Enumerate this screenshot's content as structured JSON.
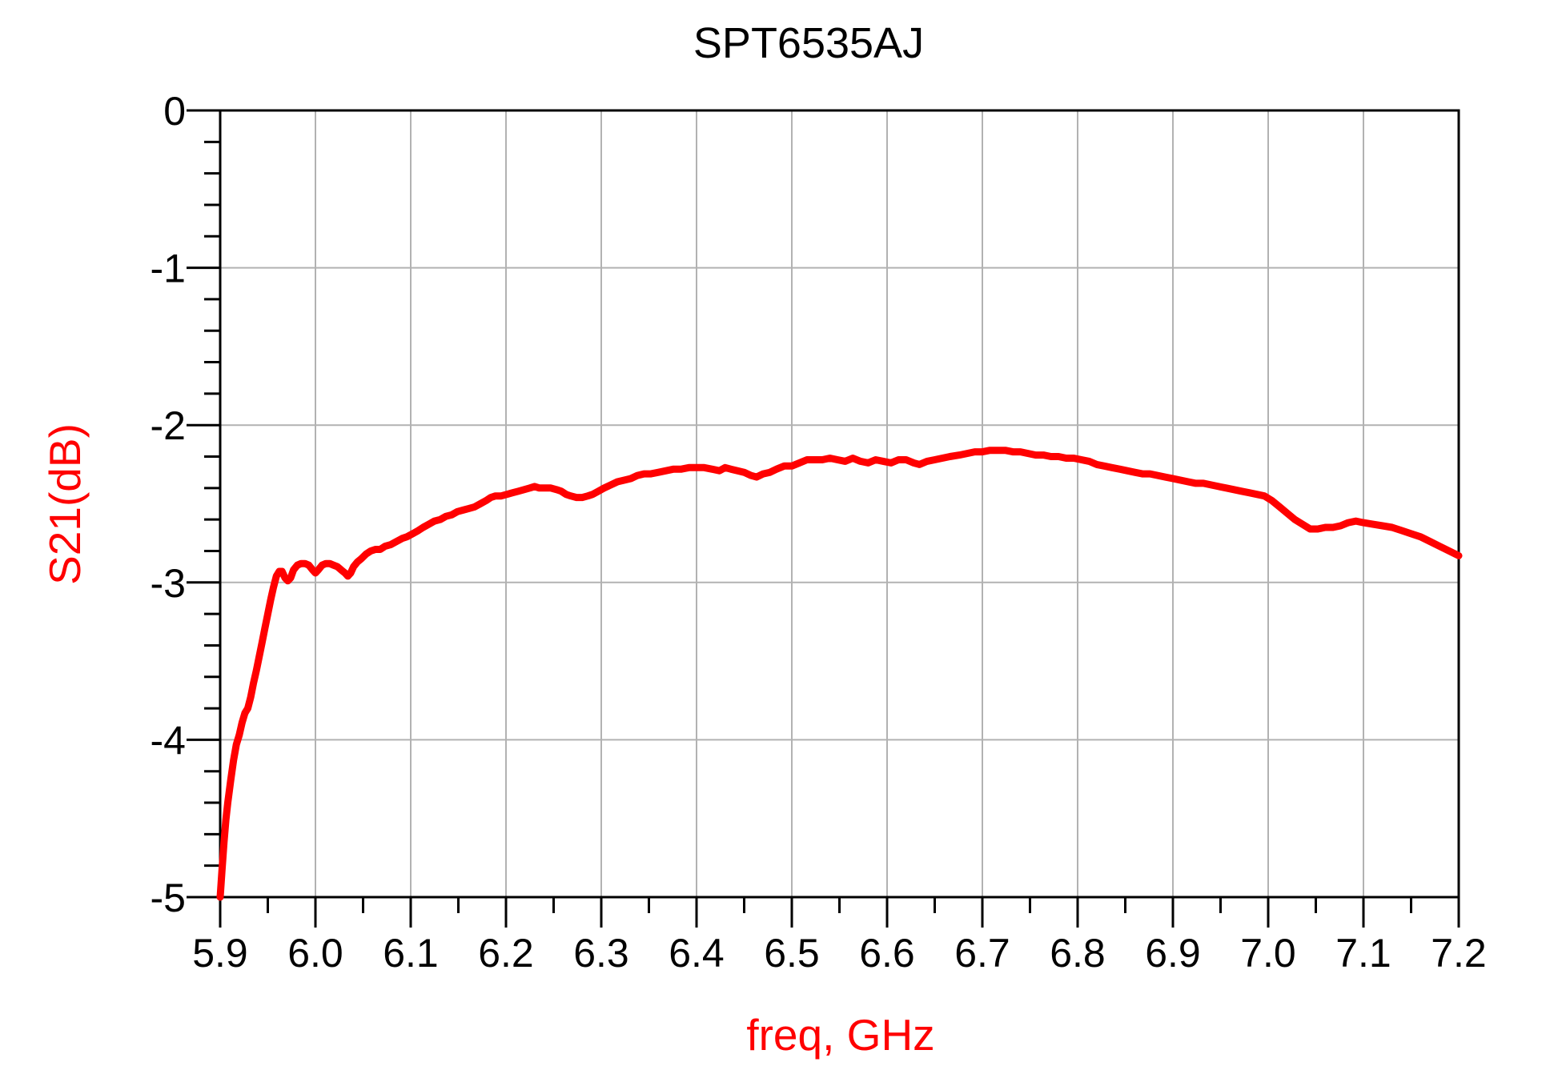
{
  "chart_data": {
    "type": "line",
    "title": "SPT6535AJ",
    "xlabel": "freq, GHz",
    "ylabel": "S21(dB)",
    "xlim": [
      5.9,
      7.2
    ],
    "ylim": [
      -5,
      0
    ],
    "grid": true,
    "legend": "none",
    "x_tick_labels": [
      "5.9",
      "6.0",
      "6.1",
      "6.2",
      "6.3",
      "6.4",
      "6.5",
      "6.6",
      "6.7",
      "6.8",
      "6.9",
      "7.0",
      "7.1",
      "7.2"
    ],
    "x_tick_values": [
      5.9,
      6.0,
      6.1,
      6.2,
      6.3,
      6.4,
      6.5,
      6.6,
      6.7,
      6.8,
      6.9,
      7.0,
      7.1,
      7.2
    ],
    "x_minor_step": 0.05,
    "y_tick_labels": [
      "0",
      "-1",
      "-2",
      "-3",
      "-4",
      "-5"
    ],
    "y_tick_values": [
      0,
      -1,
      -2,
      -3,
      -4,
      -5
    ],
    "y_minor_step": 0.2,
    "colors": {
      "curve": "#ff0000",
      "axis_text_accent": "#ff0000",
      "grid": "#b2b2b2",
      "axis": "#000000",
      "background": "#ffffff"
    },
    "series": [
      {
        "name": "S21(dB)",
        "points": [
          [
            5.9,
            -5.0
          ],
          [
            5.902,
            -4.82
          ],
          [
            5.904,
            -4.65
          ],
          [
            5.906,
            -4.51
          ],
          [
            5.908,
            -4.4
          ],
          [
            5.911,
            -4.26
          ],
          [
            5.914,
            -4.13
          ],
          [
            5.917,
            -4.03
          ],
          [
            5.92,
            -3.97
          ],
          [
            5.923,
            -3.89
          ],
          [
            5.926,
            -3.83
          ],
          [
            5.929,
            -3.8
          ],
          [
            5.932,
            -3.73
          ],
          [
            5.935,
            -3.64
          ],
          [
            5.938,
            -3.56
          ],
          [
            5.941,
            -3.47
          ],
          [
            5.944,
            -3.38
          ],
          [
            5.947,
            -3.29
          ],
          [
            5.95,
            -3.2
          ],
          [
            5.953,
            -3.11
          ],
          [
            5.956,
            -3.03
          ],
          [
            5.959,
            -2.96
          ],
          [
            5.962,
            -2.93
          ],
          [
            5.965,
            -2.93
          ],
          [
            5.968,
            -2.97
          ],
          [
            5.971,
            -2.99
          ],
          [
            5.974,
            -2.97
          ],
          [
            5.977,
            -2.92
          ],
          [
            5.981,
            -2.89
          ],
          [
            5.985,
            -2.88
          ],
          [
            5.989,
            -2.88
          ],
          [
            5.993,
            -2.89
          ],
          [
            5.997,
            -2.92
          ],
          [
            6.0,
            -2.94
          ],
          [
            6.003,
            -2.92
          ],
          [
            6.007,
            -2.89
          ],
          [
            6.011,
            -2.88
          ],
          [
            6.015,
            -2.88
          ],
          [
            6.019,
            -2.89
          ],
          [
            6.023,
            -2.9
          ],
          [
            6.027,
            -2.92
          ],
          [
            6.031,
            -2.94
          ],
          [
            6.034,
            -2.96
          ],
          [
            6.037,
            -2.94
          ],
          [
            6.04,
            -2.9
          ],
          [
            6.044,
            -2.87
          ],
          [
            6.048,
            -2.85
          ],
          [
            6.053,
            -2.82
          ],
          [
            6.058,
            -2.8
          ],
          [
            6.063,
            -2.79
          ],
          [
            6.068,
            -2.79
          ],
          [
            6.073,
            -2.77
          ],
          [
            6.079,
            -2.76
          ],
          [
            6.085,
            -2.74
          ],
          [
            6.091,
            -2.72
          ],
          [
            6.096,
            -2.71
          ],
          [
            6.102,
            -2.69
          ],
          [
            6.108,
            -2.67
          ],
          [
            6.113,
            -2.65
          ],
          [
            6.119,
            -2.63
          ],
          [
            6.125,
            -2.61
          ],
          [
            6.131,
            -2.6
          ],
          [
            6.137,
            -2.58
          ],
          [
            6.143,
            -2.57
          ],
          [
            6.149,
            -2.55
          ],
          [
            6.155,
            -2.54
          ],
          [
            6.161,
            -2.53
          ],
          [
            6.167,
            -2.52
          ],
          [
            6.173,
            -2.5
          ],
          [
            6.179,
            -2.48
          ],
          [
            6.184,
            -2.46
          ],
          [
            6.189,
            -2.45
          ],
          [
            6.195,
            -2.45
          ],
          [
            6.201,
            -2.44
          ],
          [
            6.207,
            -2.43
          ],
          [
            6.213,
            -2.42
          ],
          [
            6.219,
            -2.41
          ],
          [
            6.225,
            -2.4
          ],
          [
            6.23,
            -2.39
          ],
          [
            6.235,
            -2.4
          ],
          [
            6.241,
            -2.4
          ],
          [
            6.247,
            -2.4
          ],
          [
            6.253,
            -2.41
          ],
          [
            6.258,
            -2.42
          ],
          [
            6.263,
            -2.44
          ],
          [
            6.268,
            -2.45
          ],
          [
            6.274,
            -2.46
          ],
          [
            6.28,
            -2.46
          ],
          [
            6.286,
            -2.45
          ],
          [
            6.291,
            -2.44
          ],
          [
            6.297,
            -2.42
          ],
          [
            6.303,
            -2.4
          ],
          [
            6.31,
            -2.38
          ],
          [
            6.317,
            -2.36
          ],
          [
            6.324,
            -2.35
          ],
          [
            6.331,
            -2.34
          ],
          [
            6.338,
            -2.32
          ],
          [
            6.345,
            -2.31
          ],
          [
            6.352,
            -2.31
          ],
          [
            6.36,
            -2.3
          ],
          [
            6.368,
            -2.29
          ],
          [
            6.376,
            -2.28
          ],
          [
            6.384,
            -2.28
          ],
          [
            6.392,
            -2.27
          ],
          [
            6.4,
            -2.27
          ],
          [
            6.408,
            -2.27
          ],
          [
            6.416,
            -2.28
          ],
          [
            6.424,
            -2.29
          ],
          [
            6.43,
            -2.27
          ],
          [
            6.436,
            -2.28
          ],
          [
            6.443,
            -2.29
          ],
          [
            6.45,
            -2.3
          ],
          [
            6.457,
            -2.32
          ],
          [
            6.463,
            -2.33
          ],
          [
            6.47,
            -2.31
          ],
          [
            6.477,
            -2.3
          ],
          [
            6.484,
            -2.28
          ],
          [
            6.492,
            -2.26
          ],
          [
            6.5,
            -2.26
          ],
          [
            6.508,
            -2.24
          ],
          [
            6.516,
            -2.22
          ],
          [
            6.524,
            -2.22
          ],
          [
            6.532,
            -2.22
          ],
          [
            6.54,
            -2.21
          ],
          [
            6.548,
            -2.22
          ],
          [
            6.556,
            -2.23
          ],
          [
            6.564,
            -2.21
          ],
          [
            6.572,
            -2.23
          ],
          [
            6.58,
            -2.24
          ],
          [
            6.588,
            -2.22
          ],
          [
            6.596,
            -2.23
          ],
          [
            6.604,
            -2.24
          ],
          [
            6.612,
            -2.22
          ],
          [
            6.62,
            -2.22
          ],
          [
            6.628,
            -2.24
          ],
          [
            6.634,
            -2.25
          ],
          [
            6.642,
            -2.23
          ],
          [
            6.65,
            -2.22
          ],
          [
            6.658,
            -2.21
          ],
          [
            6.666,
            -2.2
          ],
          [
            6.676,
            -2.19
          ],
          [
            6.684,
            -2.18
          ],
          [
            6.692,
            -2.17
          ],
          [
            6.7,
            -2.17
          ],
          [
            6.708,
            -2.16
          ],
          [
            6.716,
            -2.16
          ],
          [
            6.724,
            -2.16
          ],
          [
            6.732,
            -2.17
          ],
          [
            6.74,
            -2.17
          ],
          [
            6.748,
            -2.18
          ],
          [
            6.756,
            -2.19
          ],
          [
            6.764,
            -2.19
          ],
          [
            6.772,
            -2.2
          ],
          [
            6.78,
            -2.2
          ],
          [
            6.788,
            -2.21
          ],
          [
            6.796,
            -2.21
          ],
          [
            6.804,
            -2.22
          ],
          [
            6.812,
            -2.23
          ],
          [
            6.82,
            -2.25
          ],
          [
            6.828,
            -2.26
          ],
          [
            6.836,
            -2.27
          ],
          [
            6.844,
            -2.28
          ],
          [
            6.852,
            -2.29
          ],
          [
            6.86,
            -2.3
          ],
          [
            6.868,
            -2.31
          ],
          [
            6.876,
            -2.31
          ],
          [
            6.884,
            -2.32
          ],
          [
            6.892,
            -2.33
          ],
          [
            6.9,
            -2.34
          ],
          [
            6.908,
            -2.35
          ],
          [
            6.916,
            -2.36
          ],
          [
            6.924,
            -2.37
          ],
          [
            6.932,
            -2.37
          ],
          [
            6.94,
            -2.38
          ],
          [
            6.948,
            -2.39
          ],
          [
            6.956,
            -2.4
          ],
          [
            6.964,
            -2.41
          ],
          [
            6.972,
            -2.42
          ],
          [
            6.98,
            -2.43
          ],
          [
            6.988,
            -2.44
          ],
          [
            6.996,
            -2.45
          ],
          [
            7.004,
            -2.48
          ],
          [
            7.012,
            -2.52
          ],
          [
            7.02,
            -2.56
          ],
          [
            7.028,
            -2.6
          ],
          [
            7.036,
            -2.63
          ],
          [
            7.044,
            -2.66
          ],
          [
            7.052,
            -2.66
          ],
          [
            7.06,
            -2.65
          ],
          [
            7.068,
            -2.65
          ],
          [
            7.076,
            -2.64
          ],
          [
            7.084,
            -2.62
          ],
          [
            7.092,
            -2.61
          ],
          [
            7.1,
            -2.62
          ],
          [
            7.11,
            -2.63
          ],
          [
            7.12,
            -2.64
          ],
          [
            7.13,
            -2.65
          ],
          [
            7.14,
            -2.67
          ],
          [
            7.15,
            -2.69
          ],
          [
            7.16,
            -2.71
          ],
          [
            7.17,
            -2.74
          ],
          [
            7.18,
            -2.77
          ],
          [
            7.19,
            -2.8
          ],
          [
            7.2,
            -2.83
          ]
        ]
      }
    ]
  }
}
